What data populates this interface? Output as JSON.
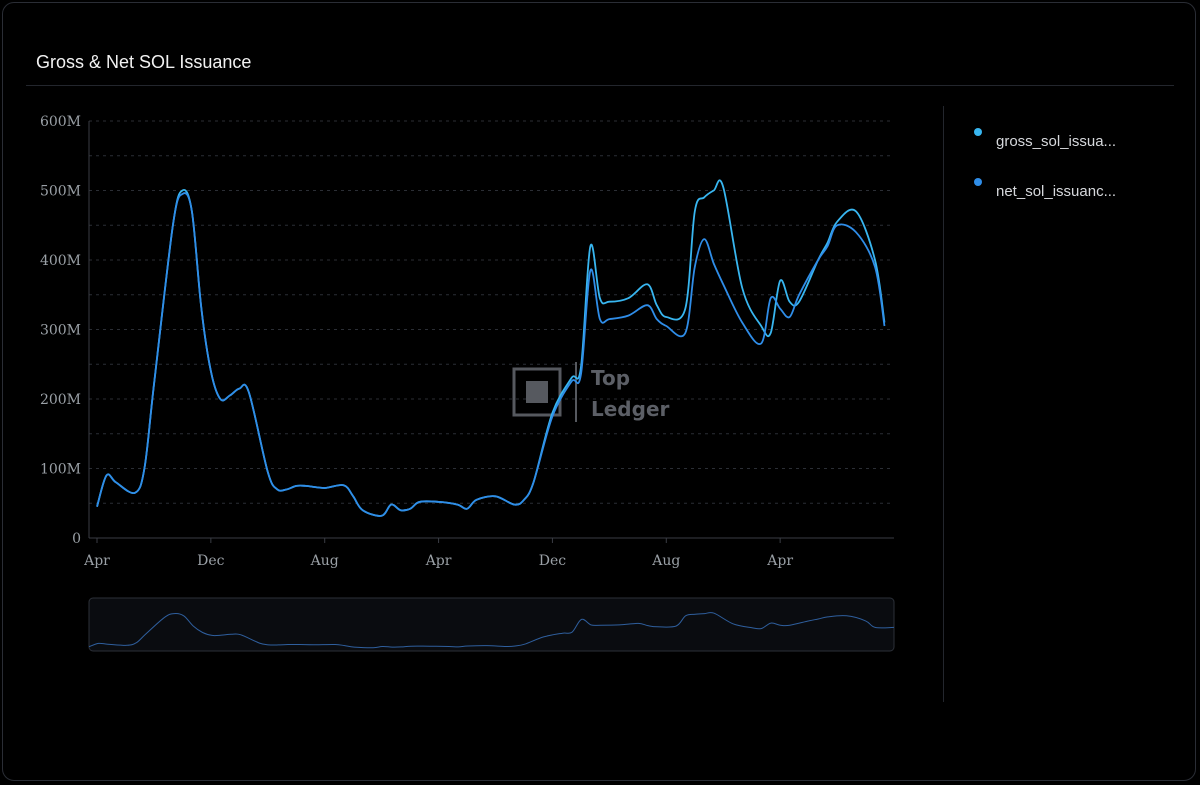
{
  "title": "Gross & Net SOL Issuance",
  "watermark": {
    "line1": "Top",
    "line2": "Ledger"
  },
  "colors": {
    "gross": "#38b6f0",
    "net": "#2f8de8",
    "navigator_line": "#2f5f9e",
    "grid": "#2b2e35",
    "axis": "#3a3d45"
  },
  "chart_data": {
    "type": "line",
    "title": "Gross & Net SOL Issuance",
    "xlabel": "",
    "ylabel": "",
    "ylim": [
      0,
      600000000
    ],
    "y_ticks": [
      0,
      100000000,
      200000000,
      300000000,
      400000000,
      500000000,
      600000000
    ],
    "y_tick_labels": [
      "0",
      "100M",
      "200M",
      "300M",
      "400M",
      "500M",
      "600M"
    ],
    "x_range": [
      0,
      42
    ],
    "x_ticks": [
      0,
      6,
      12,
      18,
      24,
      30,
      36
    ],
    "x_tick_labels": [
      "Apr",
      "Dec",
      "Aug",
      "Apr",
      "Dec",
      "Aug",
      "Apr"
    ],
    "x_unit": "months",
    "grid": true,
    "legend": "right",
    "series": [
      {
        "name": "gross_sol_issua...",
        "color_key": "gross",
        "x": [
          0,
          0.5,
          1,
          2,
          2.5,
          3,
          4,
          4.5,
          5,
          5.5,
          6,
          6.5,
          7,
          7.5,
          8,
          9,
          9.5,
          10,
          10.5,
          11,
          12,
          13,
          13.5,
          14,
          15,
          15.5,
          16,
          16.5,
          17,
          18,
          19,
          19.5,
          20,
          21,
          22,
          22.5,
          23,
          24,
          25,
          25.5,
          26,
          26.5,
          27,
          28,
          29,
          29.5,
          30,
          31,
          31.5,
          32,
          32.5,
          33,
          34,
          35,
          35.5,
          36,
          36.5,
          37,
          38,
          38.5,
          39,
          40,
          41,
          41.5
        ],
        "values": [
          45000000,
          90000000,
          80000000,
          65000000,
          100000000,
          220000000,
          450000000,
          500000000,
          470000000,
          330000000,
          240000000,
          200000000,
          205000000,
          215000000,
          210000000,
          95000000,
          70000000,
          70000000,
          75000000,
          75000000,
          72000000,
          76000000,
          60000000,
          40000000,
          32000000,
          48000000,
          40000000,
          42000000,
          52000000,
          52000000,
          48000000,
          42000000,
          55000000,
          60000000,
          48000000,
          55000000,
          80000000,
          180000000,
          230000000,
          245000000,
          420000000,
          345000000,
          340000000,
          345000000,
          365000000,
          335000000,
          318000000,
          330000000,
          470000000,
          490000000,
          500000000,
          505000000,
          360000000,
          305000000,
          295000000,
          370000000,
          340000000,
          340000000,
          400000000,
          425000000,
          455000000,
          470000000,
          400000000,
          310000000
        ]
      },
      {
        "name": "net_sol_issuanc...",
        "color_key": "net",
        "x": [
          0,
          0.5,
          1,
          2,
          2.5,
          3,
          4,
          4.5,
          5,
          5.5,
          6,
          6.5,
          7,
          7.5,
          8,
          9,
          9.5,
          10,
          10.5,
          11,
          12,
          13,
          13.5,
          14,
          15,
          15.5,
          16,
          16.5,
          17,
          18,
          19,
          19.5,
          20,
          21,
          22,
          22.5,
          23,
          24,
          25,
          25.5,
          26,
          26.5,
          27,
          28,
          29,
          29.5,
          30,
          31,
          31.5,
          32,
          32.5,
          33,
          34,
          35,
          35.5,
          36,
          36.5,
          37,
          38,
          38.5,
          39,
          40,
          41,
          41.5
        ],
        "values": [
          45000000,
          90000000,
          80000000,
          65000000,
          100000000,
          220000000,
          450000000,
          495000000,
          470000000,
          330000000,
          240000000,
          200000000,
          205000000,
          215000000,
          210000000,
          95000000,
          70000000,
          70000000,
          75000000,
          75000000,
          72000000,
          76000000,
          60000000,
          40000000,
          32000000,
          48000000,
          40000000,
          42000000,
          52000000,
          52000000,
          48000000,
          42000000,
          55000000,
          60000000,
          48000000,
          55000000,
          80000000,
          175000000,
          225000000,
          235000000,
          385000000,
          315000000,
          315000000,
          320000000,
          335000000,
          315000000,
          305000000,
          295000000,
          390000000,
          430000000,
          395000000,
          365000000,
          310000000,
          280000000,
          345000000,
          330000000,
          318000000,
          350000000,
          400000000,
          420000000,
          450000000,
          440000000,
          390000000,
          305000000
        ]
      }
    ]
  }
}
